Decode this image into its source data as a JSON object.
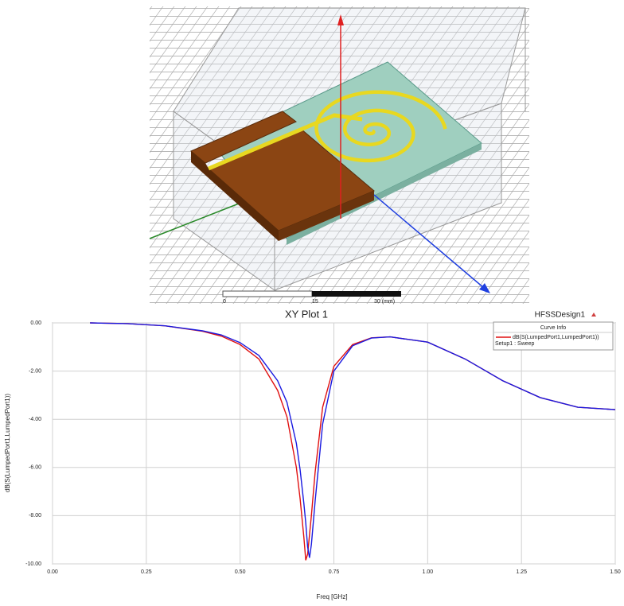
{
  "model_view": {
    "scale_labels": [
      "0",
      "15",
      "30 (mm)"
    ]
  },
  "chart_data": {
    "type": "line",
    "title": "XY Plot 1",
    "design_name": "HFSSDesign1",
    "legend_title": "Curve Info",
    "x_label": "Freq [GHz]",
    "y_label": "dB(S(LumpedPort1,LumpedPort1))",
    "xlim": [
      0,
      1.5
    ],
    "ylim": [
      -10,
      0
    ],
    "xticks": [
      {
        "value": 0,
        "label": "0.00"
      },
      {
        "value": 0.25,
        "label": "0.25"
      },
      {
        "value": 0.5,
        "label": "0.50"
      },
      {
        "value": 0.75,
        "label": "0.75"
      },
      {
        "value": 1,
        "label": "1.00"
      },
      {
        "value": 1.25,
        "label": "1.25"
      },
      {
        "value": 1.5,
        "label": "1.50"
      }
    ],
    "yticks": [
      {
        "value": 0,
        "label": "0.00"
      },
      {
        "value": -2,
        "label": "-2.00"
      },
      {
        "value": -4,
        "label": "-4.00"
      },
      {
        "value": -6,
        "label": "-6.00"
      },
      {
        "value": -8,
        "label": "-8.00"
      },
      {
        "value": -10,
        "label": "-10.00"
      }
    ],
    "grid": true,
    "legend_position": "upper right",
    "series": [
      {
        "name": "dB(S(LumpedPort1,LumpedPort1))",
        "setup": "Setup1 : Sweep",
        "color": "#e01010",
        "x": [
          0.1,
          0.2,
          0.3,
          0.4,
          0.45,
          0.5,
          0.55,
          0.6,
          0.625,
          0.65,
          0.66,
          0.67,
          0.675,
          0.68,
          0.69,
          0.7,
          0.72,
          0.75,
          0.8,
          0.85,
          0.9,
          1.0,
          1.1,
          1.2,
          1.3,
          1.4,
          1.5
        ],
        "values": [
          0,
          -0.03,
          -0.12,
          -0.35,
          -0.55,
          -0.9,
          -1.5,
          -2.8,
          -3.9,
          -6.0,
          -7.3,
          -8.9,
          -9.85,
          -9.6,
          -8.0,
          -6.2,
          -3.5,
          -1.8,
          -0.9,
          -0.62,
          -0.58,
          -0.8,
          -1.5,
          -2.4,
          -3.1,
          -3.5,
          -3.6
        ]
      },
      {
        "color": "#1a1ae0",
        "x": [
          0.1,
          0.2,
          0.3,
          0.4,
          0.45,
          0.5,
          0.55,
          0.6,
          0.625,
          0.65,
          0.66,
          0.67,
          0.675,
          0.68,
          0.685,
          0.69,
          0.7,
          0.72,
          0.75,
          0.8,
          0.85,
          0.9,
          1.0,
          1.1,
          1.2,
          1.3,
          1.4,
          1.5
        ],
        "values": [
          0,
          -0.03,
          -0.12,
          -0.33,
          -0.5,
          -0.82,
          -1.35,
          -2.4,
          -3.3,
          -5.0,
          -6.1,
          -7.5,
          -8.3,
          -9.3,
          -9.75,
          -9.2,
          -7.4,
          -4.2,
          -2.0,
          -0.95,
          -0.63,
          -0.58,
          -0.8,
          -1.5,
          -2.4,
          -3.1,
          -3.5,
          -3.6
        ]
      }
    ]
  }
}
